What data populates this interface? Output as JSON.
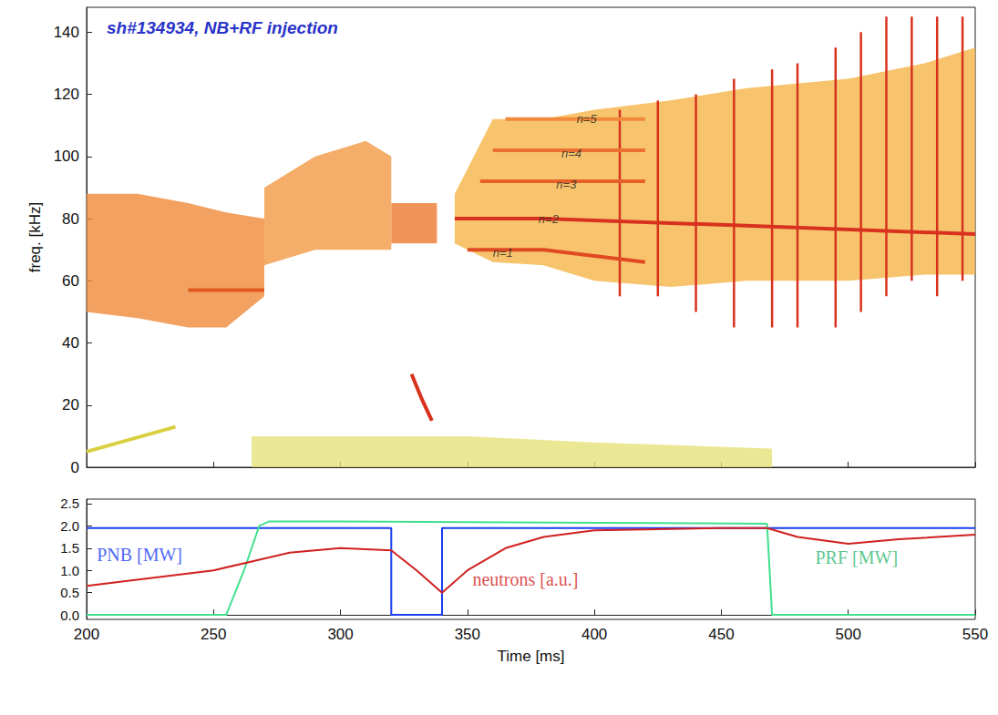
{
  "chart_data": [
    {
      "type": "spectrogram",
      "title": "sh#134934, NB+RF injection",
      "ylabel": "freq. [kHz]",
      "xlim": [
        200,
        550
      ],
      "xticks": [
        200,
        250,
        300,
        350,
        400,
        450,
        500,
        550
      ],
      "ylim": [
        0,
        148
      ],
      "yticks": [
        0,
        20,
        40,
        60,
        80,
        100,
        120,
        140
      ],
      "tick_labels": "y",
      "grid": false,
      "bands": [
        {
          "color": "#f08a3a",
          "x": [
            200,
            220,
            240,
            255,
            270
          ],
          "low": [
            50,
            48,
            45,
            45,
            55
          ],
          "high": [
            88,
            88,
            85,
            82,
            80
          ]
        },
        {
          "color": "#f29a45",
          "x": [
            270,
            290,
            310,
            320
          ],
          "low": [
            65,
            70,
            70,
            70
          ],
          "high": [
            90,
            100,
            105,
            100
          ]
        },
        {
          "color": "#ec7a30",
          "x": [
            320,
            330,
            338
          ],
          "low": [
            72,
            72,
            72
          ],
          "high": [
            85,
            85,
            85
          ]
        },
        {
          "color": "#f5b548",
          "x": [
            345,
            360,
            380,
            400,
            430,
            460,
            500,
            530,
            550
          ],
          "low": [
            72,
            66,
            65,
            60,
            58,
            60,
            60,
            62,
            62
          ],
          "high": [
            88,
            112,
            112,
            115,
            118,
            122,
            125,
            130,
            135
          ]
        },
        {
          "color": "#e6e27a",
          "x": [
            265,
            300,
            350,
            400,
            470
          ],
          "low": [
            0,
            0,
            0,
            0,
            0
          ],
          "high": [
            10,
            10,
            10,
            8,
            6
          ]
        }
      ],
      "bursts": {
        "color": "#d8321e",
        "x": [
          410,
          425,
          440,
          455,
          470,
          480,
          495,
          505,
          515,
          525,
          535,
          545
        ],
        "low": [
          55,
          55,
          50,
          45,
          45,
          45,
          45,
          50,
          55,
          60,
          55,
          60
        ],
        "high": [
          115,
          118,
          120,
          125,
          128,
          130,
          135,
          140,
          145,
          145,
          145,
          145
        ]
      },
      "series": [
        {
          "color": "#e05a20",
          "x": [
            240,
            270
          ],
          "values": [
            57,
            57
          ]
        },
        {
          "color": "#d8d040",
          "x": [
            200,
            235
          ],
          "values": [
            5,
            13
          ]
        },
        {
          "color": "#e04a22",
          "x": [
            350,
            380,
            420
          ],
          "values": [
            70,
            70,
            66
          ]
        },
        {
          "color": "#d8321e",
          "x": [
            345,
            380,
            450,
            550
          ],
          "values": [
            80,
            80,
            78,
            75
          ]
        },
        {
          "color": "#e86028",
          "x": [
            355,
            380,
            420
          ],
          "values": [
            92,
            92,
            92
          ]
        },
        {
          "color": "#ec7030",
          "x": [
            360,
            380,
            420
          ],
          "values": [
            102,
            102,
            102
          ]
        },
        {
          "color": "#f08a3a",
          "x": [
            365,
            390,
            420
          ],
          "values": [
            112,
            112,
            112
          ]
        },
        {
          "color": "#d8321e",
          "x": [
            328,
            332,
            336
          ],
          "values": [
            30,
            22,
            15
          ]
        }
      ],
      "annotations": [
        {
          "text": "n=1",
          "x": 360,
          "y": 69
        },
        {
          "text": "n=2",
          "x": 378,
          "y": 80
        },
        {
          "text": "n=3",
          "x": 385,
          "y": 91
        },
        {
          "text": "n=4",
          "x": 387,
          "y": 101
        },
        {
          "text": "n=5",
          "x": 393,
          "y": 112
        }
      ]
    },
    {
      "type": "line",
      "xlabel": "Time [ms]",
      "xlim": [
        200,
        550
      ],
      "xticks": [
        200,
        250,
        300,
        350,
        400,
        450,
        500,
        550
      ],
      "ylim": [
        -0.1,
        2.6
      ],
      "yticks": [
        {
          "value": 0,
          "label": "0.0"
        },
        {
          "value": 0.5,
          "label": "0.5"
        },
        {
          "value": 1,
          "label": "1.0"
        },
        {
          "value": 1.5,
          "label": "1.5"
        },
        {
          "value": 2,
          "label": "2.0"
        },
        {
          "value": 2.5,
          "label": "2.5"
        }
      ],
      "grid": false,
      "series": [
        {
          "color": "#1a3ef0",
          "x": [
            200,
            320,
            320,
            340,
            340,
            550
          ],
          "values": [
            1.95,
            1.95,
            0,
            0,
            1.95,
            1.95
          ]
        },
        {
          "color": "#40e090",
          "x": [
            200,
            255,
            262,
            268,
            272,
            300,
            468,
            470,
            550
          ],
          "values": [
            0,
            0,
            1.0,
            2.0,
            2.1,
            2.1,
            2.05,
            0,
            0
          ]
        },
        {
          "color": "#d02020",
          "x": [
            200,
            250,
            265,
            280,
            300,
            320,
            330,
            340,
            350,
            365,
            380,
            400,
            450,
            468,
            480,
            500,
            520,
            550
          ],
          "values": [
            0.65,
            1.0,
            1.2,
            1.4,
            1.5,
            1.45,
            1.0,
            0.5,
            1.0,
            1.5,
            1.75,
            1.9,
            1.95,
            1.95,
            1.75,
            1.6,
            1.7,
            1.8
          ]
        }
      ],
      "annotations": [
        {
          "text": "PNB [MW]",
          "x": 204,
          "y": 1.35,
          "color": "#1a3ef0"
        },
        {
          "text": "neutrons [a.u.]",
          "x": 352,
          "y": 0.8,
          "color": "#d02020"
        },
        {
          "text": "PRF [MW]",
          "x": 487,
          "y": 1.3,
          "color": "#2fb870"
        }
      ]
    }
  ]
}
